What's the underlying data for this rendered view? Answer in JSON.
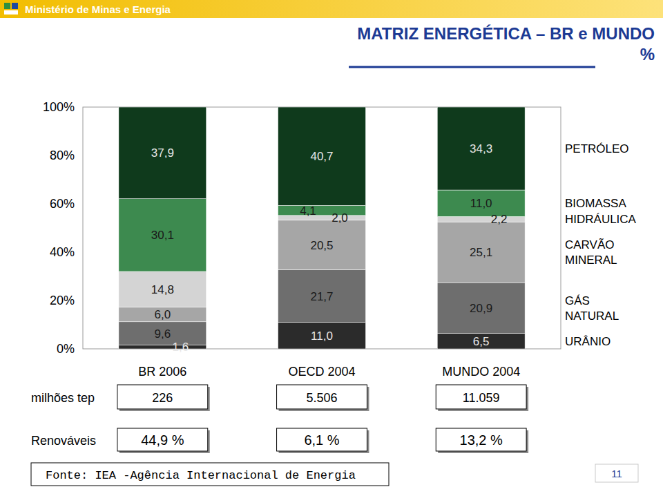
{
  "chart_data": {
    "type": "bar",
    "stacked": true,
    "data_labels": true,
    "grid": false,
    "legend": "right",
    "header": "Ministério de Minas e Energia",
    "title": "MATRIZ ENERGÉTICA – BR e MUNDO",
    "subtitle": "%",
    "categories": [
      "BR 2006",
      "OECD 2004",
      "MUNDO 2004"
    ],
    "ylim": [
      0,
      100
    ],
    "yticks": [
      {
        "value": 0,
        "label": "0%"
      },
      {
        "value": 20,
        "label": "20%"
      },
      {
        "value": 40,
        "label": "40%"
      },
      {
        "value": 60,
        "label": "60%"
      },
      {
        "value": 80,
        "label": "80%"
      },
      {
        "value": 100,
        "label": "100%"
      }
    ],
    "series": [
      {
        "name": "URÂNIO",
        "color": "#2b2b2b",
        "values": [
          1.6,
          11.0,
          6.5
        ],
        "value_labels": [
          "1,6",
          "11,0",
          "6,5"
        ]
      },
      {
        "name": "GÁS NATURAL",
        "color": "#6e6e6e",
        "values": [
          9.6,
          21.7,
          20.9
        ],
        "value_labels": [
          "9,6",
          "21,7",
          "20,9"
        ]
      },
      {
        "name": "CARVÃO MINERAL",
        "color": "#a6a6a6",
        "values": [
          6.0,
          20.5,
          25.1
        ],
        "value_labels": [
          "6,0",
          "20,5",
          "25,1"
        ]
      },
      {
        "name": "HIDRÁULICA",
        "color": "#d4d4d4",
        "values": [
          14.8,
          2.0,
          2.2
        ],
        "value_labels": [
          "14,8",
          "2,0",
          "2,2"
        ]
      },
      {
        "name": "BIOMASSA",
        "color": "#3d8a4f",
        "values": [
          30.1,
          4.1,
          11.0
        ],
        "value_labels": [
          "30,1",
          "4,1",
          "11,0"
        ]
      },
      {
        "name": "PETRÓLEO",
        "color": "#0f3a1c",
        "values": [
          37.9,
          40.7,
          34.3
        ],
        "value_labels": [
          "37,9",
          "40,7",
          "34,3"
        ]
      }
    ],
    "rows": [
      {
        "label": "milhões tep",
        "values": [
          226,
          5506,
          11059
        ],
        "value_labels": [
          "226",
          "5.506",
          "11.059"
        ]
      },
      {
        "label": "Renováveis",
        "values": [
          44.9,
          6.1,
          13.2
        ],
        "value_labels": [
          "44,9 %",
          "6,1 %",
          "13,2 %"
        ]
      }
    ],
    "source": "Fonte: IEA -Agência Internacional de Energia",
    "page": 11
  }
}
